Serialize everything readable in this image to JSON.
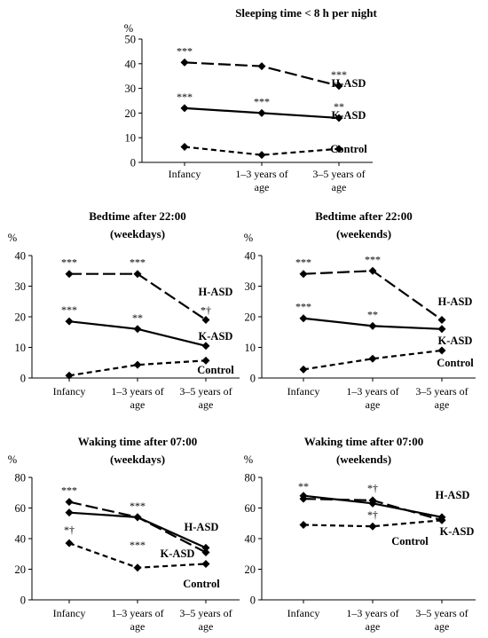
{
  "chart_data": [
    {
      "type": "line",
      "title": "Sleeping time < 8 h per night",
      "subtitle": "",
      "ylabel": "%",
      "ylim": [
        0,
        50
      ],
      "yticks": [
        0,
        10,
        20,
        30,
        40,
        50
      ],
      "categories": [
        "Infancy",
        "1–3 years of age",
        "3–5 years of age"
      ],
      "series": [
        {
          "name": "H-ASD",
          "values": [
            40.5,
            39,
            31
          ],
          "style": "long-dash"
        },
        {
          "name": "K-ASD",
          "values": [
            22,
            20,
            18
          ],
          "style": "solid"
        },
        {
          "name": "Control",
          "values": [
            6.3,
            3,
            5.5
          ],
          "style": "short-dash"
        }
      ],
      "annotations": [
        [
          "***",
          "",
          "***"
        ],
        [
          "***",
          "***",
          "**"
        ],
        [
          "",
          "",
          ""
        ]
      ]
    },
    {
      "type": "line",
      "title": "Bedtime after 22:00",
      "subtitle": "(weekdays)",
      "ylabel": "%",
      "ylim": [
        0,
        40
      ],
      "yticks": [
        0,
        10,
        20,
        30,
        40
      ],
      "categories": [
        "Infancy",
        "1–3 years of age",
        "3–5 years of age"
      ],
      "series": [
        {
          "name": "H-ASD",
          "values": [
            34,
            34,
            19
          ],
          "style": "long-dash"
        },
        {
          "name": "K-ASD",
          "values": [
            18.5,
            16,
            10.5
          ],
          "style": "solid"
        },
        {
          "name": "Control",
          "values": [
            0.8,
            4.3,
            5.7
          ],
          "style": "short-dash"
        }
      ],
      "annotations": [
        [
          "***",
          "***",
          "*†"
        ],
        [
          "***",
          "**",
          ""
        ],
        [
          "",
          "",
          ""
        ]
      ]
    },
    {
      "type": "line",
      "title": "Bedtime after 22:00",
      "subtitle": "(weekends)",
      "ylabel": "%",
      "ylim": [
        0,
        40
      ],
      "yticks": [
        0,
        10,
        20,
        30,
        40
      ],
      "categories": [
        "Infancy",
        "1–3 years of age",
        "3–5 years of age"
      ],
      "series": [
        {
          "name": "H-ASD",
          "values": [
            34,
            35,
            19
          ],
          "style": "long-dash"
        },
        {
          "name": "K-ASD",
          "values": [
            19.5,
            17,
            16
          ],
          "style": "solid"
        },
        {
          "name": "Control",
          "values": [
            2.8,
            6.3,
            9
          ],
          "style": "short-dash"
        }
      ],
      "annotations": [
        [
          "***",
          "***",
          ""
        ],
        [
          "***",
          "**",
          ""
        ],
        [
          "",
          "",
          ""
        ]
      ]
    },
    {
      "type": "line",
      "title": "Waking time after 07:00",
      "subtitle": "(weekdays)",
      "ylabel": "%",
      "ylim": [
        0,
        80
      ],
      "yticks": [
        0,
        20,
        40,
        60,
        80
      ],
      "categories": [
        "Infancy",
        "1–3 years of age",
        "3–5 years of age"
      ],
      "series": [
        {
          "name": "H-ASD",
          "values": [
            64,
            54,
            31
          ],
          "style": "long-dash"
        },
        {
          "name": "K-ASD",
          "values": [
            57,
            54,
            34
          ],
          "style": "solid"
        },
        {
          "name": "Control",
          "values": [
            37,
            21,
            23.5
          ],
          "style": "short-dash"
        }
      ],
      "annotations": [
        [
          "***",
          "***",
          ""
        ],
        [
          "",
          "",
          ""
        ],
        [
          "*†",
          "***",
          ""
        ]
      ]
    },
    {
      "type": "line",
      "title": "Waking time after 07:00",
      "subtitle": "(weekends)",
      "ylabel": "%",
      "ylim": [
        0,
        80
      ],
      "yticks": [
        0,
        20,
        40,
        60,
        80
      ],
      "categories": [
        "Infancy",
        "1–3 years of age",
        "3–5 years of age"
      ],
      "series": [
        {
          "name": "H-ASD",
          "values": [
            66,
            65,
            52
          ],
          "style": "long-dash"
        },
        {
          "name": "K-ASD",
          "values": [
            68,
            63,
            54
          ],
          "style": "solid"
        },
        {
          "name": "Control",
          "values": [
            49,
            48,
            52
          ],
          "style": "short-dash"
        }
      ],
      "annotations": [
        [
          "**",
          "*†",
          ""
        ],
        [
          "",
          "",
          ""
        ],
        [
          "",
          "*†",
          ""
        ]
      ]
    }
  ]
}
